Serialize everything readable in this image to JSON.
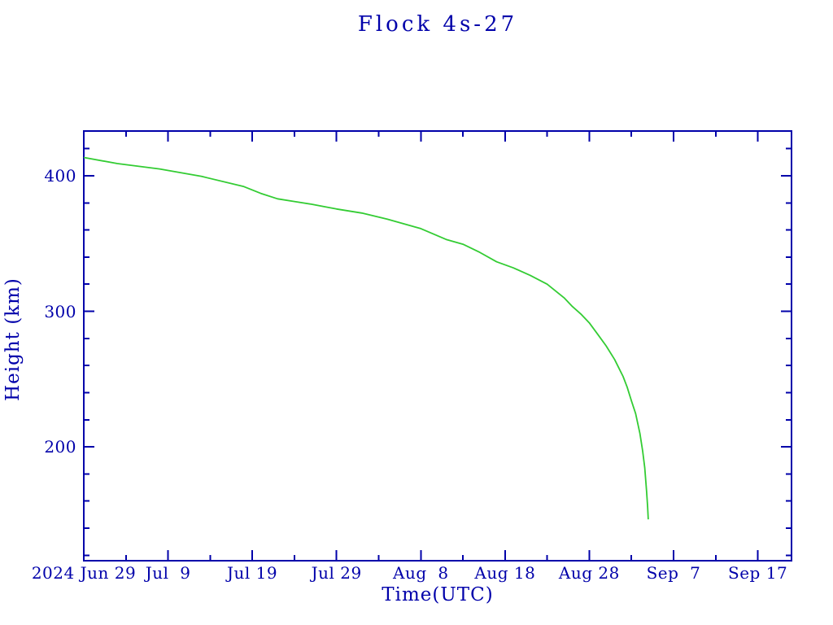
{
  "page": {
    "background": "#ffffff"
  },
  "colors": {
    "axis": "#0000aa",
    "text": "#0000aa",
    "line": "#33cc33",
    "background": "#ffffff"
  },
  "chart_data": {
    "type": "line",
    "title": "Flock 4s-27",
    "xlabel": "Time(UTC)",
    "ylabel": "Height (km)",
    "grid": false,
    "legend": "none",
    "x_start": "2024-06-29",
    "x_end": "2024-09-21",
    "ylim": [
      116,
      433
    ],
    "x_minor_step_days": 5,
    "x_major_step_days": 10,
    "y_minor_step": 20,
    "y_major_step": 100,
    "x_tick_labels": [
      {
        "date": "2024-06-29",
        "label": "2024 Jun 29"
      },
      {
        "date": "2024-07-09",
        "label": "Jul  9"
      },
      {
        "date": "2024-07-19",
        "label": "Jul 19"
      },
      {
        "date": "2024-07-29",
        "label": "Jul 29"
      },
      {
        "date": "2024-08-08",
        "label": "Aug  8"
      },
      {
        "date": "2024-08-18",
        "label": "Aug 18"
      },
      {
        "date": "2024-08-28",
        "label": "Aug 28"
      },
      {
        "date": "2024-09-07",
        "label": "Sep  7"
      },
      {
        "date": "2024-09-17",
        "label": "Sep 17"
      }
    ],
    "y_tick_labels": [
      {
        "value": 400,
        "label": "400"
      },
      {
        "value": 300,
        "label": "300"
      },
      {
        "value": 200,
        "label": "200"
      }
    ],
    "series": [
      {
        "name": "Flock 4s-27",
        "color": "#33cc33",
        "points": [
          [
            "2024-06-29",
            413.5
          ],
          [
            "2024-07-03",
            409
          ],
          [
            "2024-07-08",
            405
          ],
          [
            "2024-07-13",
            399.5
          ],
          [
            "2024-07-18",
            392
          ],
          [
            "2024-07-20",
            387
          ],
          [
            "2024-07-22",
            383
          ],
          [
            "2024-07-24",
            381
          ],
          [
            "2024-07-26",
            379
          ],
          [
            "2024-07-29",
            375.5
          ],
          [
            "2024-08-01",
            372.5
          ],
          [
            "2024-08-04",
            368
          ],
          [
            "2024-08-08",
            361
          ],
          [
            "2024-08-11",
            353
          ],
          [
            "2024-08-13",
            349.5
          ],
          [
            "2024-08-15",
            343.5
          ],
          [
            "2024-08-17",
            336.5
          ],
          [
            "2024-08-19",
            332
          ],
          [
            "2024-08-21",
            326.5
          ],
          [
            "2024-08-23",
            320
          ],
          [
            "2024-08-25",
            310
          ],
          [
            "2024-08-26",
            303.5
          ],
          [
            "2024-08-27",
            298
          ],
          [
            "2024-08-28",
            291.5
          ],
          [
            "2024-08-29",
            283
          ],
          [
            "2024-08-30",
            274.5
          ],
          [
            "2024-08-31",
            264.5
          ],
          [
            "2024-09-01",
            252
          ],
          [
            "2024-09-01T12:00",
            244
          ],
          [
            "2024-09-02",
            234
          ],
          [
            "2024-09-02T12:00",
            224.5
          ],
          [
            "2024-09-03",
            210
          ],
          [
            "2024-09-03T08:00",
            197
          ],
          [
            "2024-09-03T14:00",
            184.5
          ],
          [
            "2024-09-03T19:00",
            167.5
          ],
          [
            "2024-09-03T22:00",
            156
          ],
          [
            "2024-09-04",
            146.5
          ]
        ]
      }
    ]
  }
}
